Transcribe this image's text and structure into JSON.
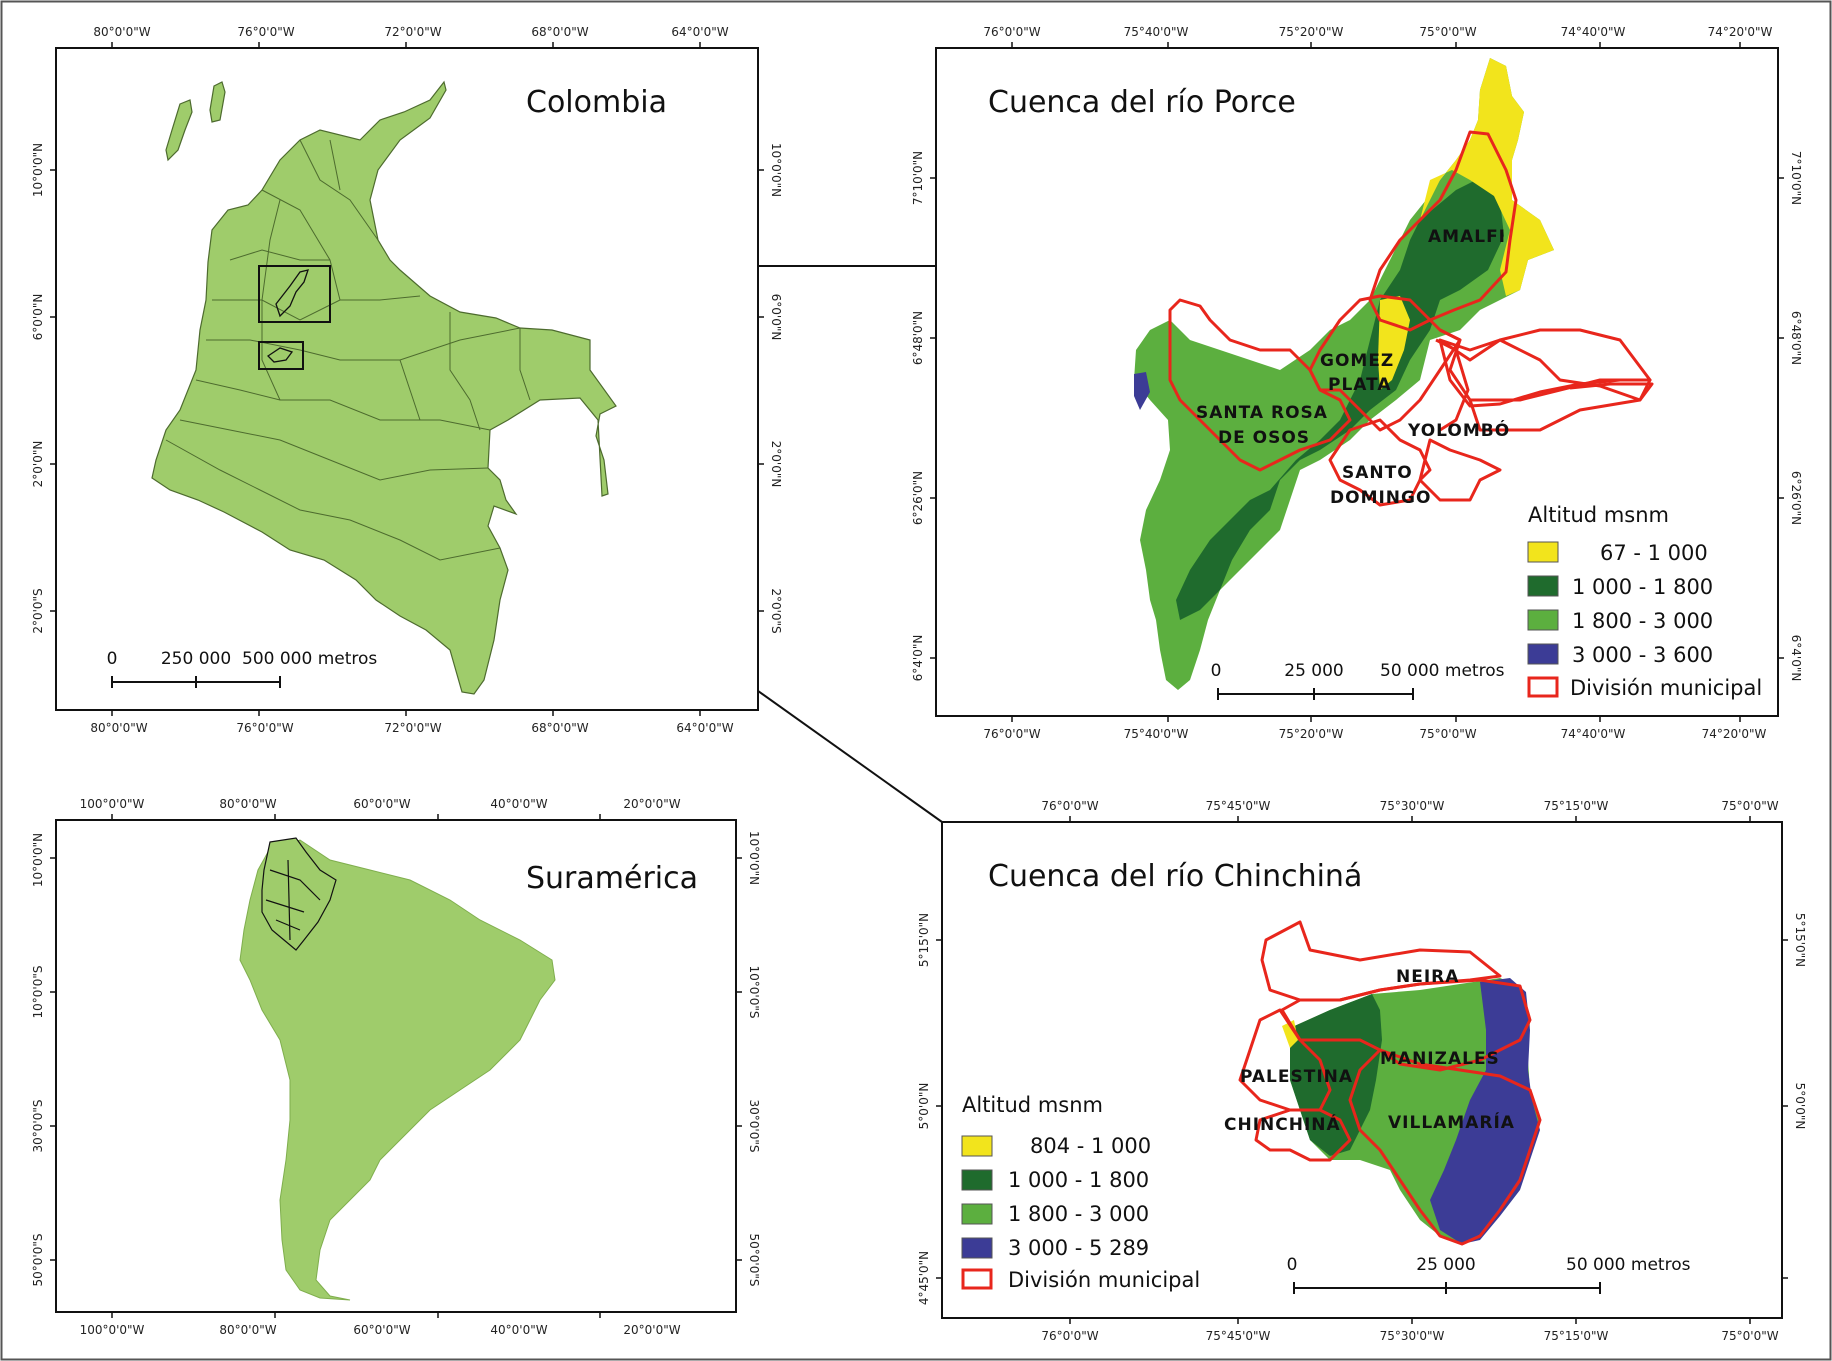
{
  "colors": {
    "land": "#9fcc6b",
    "land_stroke": "#4d6b2e",
    "yellow": "#f2e41c",
    "dark_green": "#1f6b2d",
    "mid_green": "#5caf3f",
    "blue": "#3c3c96",
    "muni": "#e8261c",
    "frame": "#111111"
  },
  "colombia": {
    "title": "Colombia",
    "top_ticks": [
      "80°0'0\"W",
      "76°0'0\"W",
      "72°0'0\"W",
      "68°0'0\"W",
      "64°0'0\"W"
    ],
    "bottom_ticks": [
      "80°0'0\"W",
      "76°0'0\"W",
      "72°0'0\"W",
      "68°0'0\"W",
      "64°0'0\"W"
    ],
    "left_ticks": [
      "10°0'0\"N",
      "6°0'0\"N",
      "2°0'0\"N",
      "2°0'0\"S"
    ],
    "right_ticks": [
      "10°0'0\"N",
      "6°0'0\"N",
      "2°0'0\"N",
      "2°0'0\"S"
    ],
    "scale": {
      "zero": "0",
      "mid": "250 000",
      "end": "500 000 metros"
    }
  },
  "suramerica": {
    "title": "Suramérica",
    "top_ticks": [
      "100°0'0\"W",
      "80°0'0\"W",
      "60°0'0\"W",
      "40°0'0\"W",
      "20°0'0\"W"
    ],
    "bottom_ticks": [
      "100°0'0\"W",
      "80°0'0\"W",
      "60°0'0\"W",
      "40°0'0\"W",
      "20°0'0\"W"
    ],
    "left_ticks": [
      "10°0'0\"N",
      "10°0'0\"S",
      "30°0'0\"S",
      "50°0'0\"S"
    ],
    "right_ticks": [
      "10°0'0\"N",
      "10°0'0\"S",
      "30°0'0\"S",
      "50°0'0\"S"
    ]
  },
  "porce": {
    "title": "Cuenca del río Porce",
    "top_ticks": [
      "76°0'0\"W",
      "75°40'0\"W",
      "75°20'0\"W",
      "75°0'0\"W",
      "74°40'0\"W",
      "74°20'0\"W"
    ],
    "bottom_ticks": [
      "76°0'0\"W",
      "75°40'0\"W",
      "75°20'0\"W",
      "75°0'0\"W",
      "74°40'0\"W",
      "74°20'0\"W"
    ],
    "left_ticks": [
      "7°10'0\"N",
      "6°48'0\"N",
      "6°26'0\"N",
      "6°4'0\"N"
    ],
    "right_ticks": [
      "7°10'0\"N",
      "6°48'0\"N",
      "6°26'0\"N",
      "6°4'0\"N"
    ],
    "municipalities": [
      "AMALFI",
      "GOMEZ",
      "PLATA",
      "SANTA ROSA",
      "DE OSOS",
      "YOLOMBÓ",
      "SANTO",
      "DOMINGO"
    ],
    "legend": {
      "title": "Altitud msnm",
      "items": [
        "67 - 1 000",
        "1 000 - 1 800",
        "1 800 - 3 000",
        "3 000 - 3 600",
        "División municipal"
      ]
    },
    "scale": {
      "zero": "0",
      "mid": "25 000",
      "end": "50 000 metros"
    }
  },
  "chinchina": {
    "title": "Cuenca del río Chinchiná",
    "top_ticks": [
      "76°0'0\"W",
      "75°45'0\"W",
      "75°30'0\"W",
      "75°15'0\"W",
      "75°0'0\"W"
    ],
    "bottom_ticks": [
      "76°0'0\"W",
      "75°45'0\"W",
      "75°30'0\"W",
      "75°15'0\"W",
      "75°0'0\"W"
    ],
    "left_ticks": [
      "5°15'0\"N",
      "5°0'0\"N",
      "4°45'0\"N"
    ],
    "right_ticks": [
      "5°15'0\"N",
      "5°0'0\"N"
    ],
    "municipalities": [
      "NEIRA",
      "MANIZALES",
      "PALESTINA",
      "CHINCHINÁ",
      "VILLAMARÍA"
    ],
    "legend": {
      "title": "Altitud msnm",
      "items": [
        "804 - 1 000",
        "1 000 - 1 800",
        "1 800 - 3 000",
        "3 000 - 5 289",
        "División municipal"
      ]
    },
    "scale": {
      "zero": "0",
      "mid": "25 000",
      "end": "50 000 metros"
    }
  }
}
